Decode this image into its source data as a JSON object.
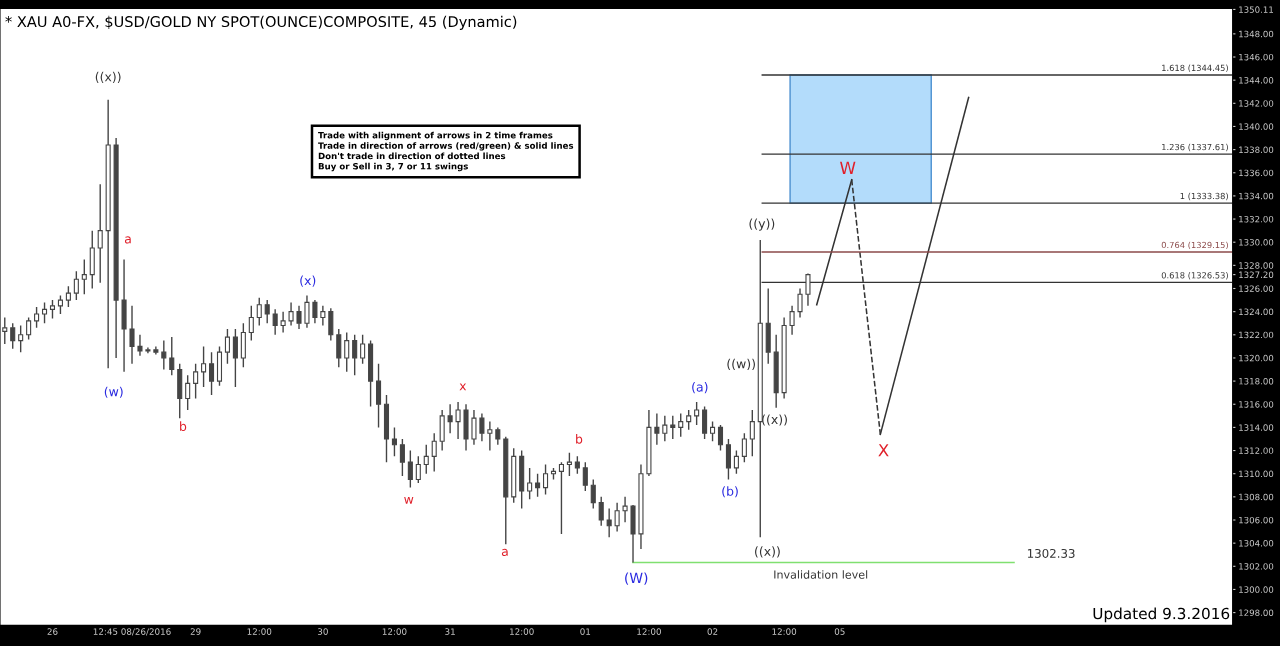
{
  "chart_data": {
    "type": "candlestick",
    "title": "* XAU A0-FX, $USD/GOLD NY SPOT(OUNCE)COMPOSITE, 45 (Dynamic)",
    "color": "#444444",
    "categories": [
      null,
      null,
      null,
      null,
      null,
      null,
      "26",
      null,
      null,
      null,
      null,
      null,
      null,
      null,
      null,
      null,
      "12:45 08/26/2016",
      null,
      null,
      null,
      null,
      null,
      null,
      null,
      "29",
      null,
      null,
      null,
      null,
      null,
      null,
      null,
      "12:00",
      null,
      null,
      null,
      null,
      null,
      null,
      null,
      "30",
      null,
      null,
      null,
      null,
      null,
      null,
      null,
      null,
      "12:00",
      null,
      null,
      null,
      null,
      null,
      null,
      "31",
      null,
      null,
      null,
      null,
      null,
      null,
      null,
      null,
      "12:00",
      null,
      null,
      null,
      null,
      null,
      null,
      null,
      "01",
      null,
      null,
      null,
      null,
      null,
      null,
      null,
      "12:00",
      null,
      null,
      null,
      null,
      null,
      null,
      null,
      "02",
      null,
      null,
      null,
      null,
      null,
      null,
      null,
      null,
      "12:00",
      null,
      null,
      null,
      null,
      null,
      null,
      "05",
      null,
      null,
      null,
      null,
      null,
      null,
      null,
      null,
      null,
      null,
      null,
      null,
      null,
      null,
      null,
      null,
      null,
      null,
      null,
      null,
      null,
      null,
      null,
      null,
      null,
      null,
      null,
      null,
      null,
      null,
      null,
      null,
      null,
      null,
      null,
      null,
      null,
      null,
      null,
      null,
      null,
      null,
      null,
      null,
      null,
      null,
      null,
      null,
      null
    ],
    "ohlc": [
      [
        1322.3,
        1323.5,
        1321.2,
        1322.6
      ],
      [
        1322.6,
        1323.0,
        1320.8,
        1321.5
      ],
      [
        1321.5,
        1322.8,
        1320.5,
        1322.0
      ],
      [
        1322.0,
        1323.5,
        1321.6,
        1323.2
      ],
      [
        1323.2,
        1324.4,
        1322.6,
        1323.8
      ],
      [
        1323.8,
        1324.8,
        1323.0,
        1324.2
      ],
      [
        1324.2,
        1325.0,
        1323.4,
        1324.5
      ],
      [
        1324.5,
        1325.4,
        1323.8,
        1325.0
      ],
      [
        1325.0,
        1326.2,
        1324.4,
        1325.6
      ],
      [
        1325.6,
        1327.5,
        1325.0,
        1326.8
      ],
      [
        1326.8,
        1328.5,
        1325.5,
        1327.2
      ],
      [
        1327.2,
        1331.0,
        1326.0,
        1329.5
      ],
      [
        1329.5,
        1335.0,
        1326.5,
        1331.0
      ],
      [
        1331.0,
        1342.3,
        1319.1,
        1338.4
      ],
      [
        1338.4,
        1339.0,
        1320.0,
        1325.0
      ],
      [
        1325.0,
        1328.5,
        1318.8,
        1322.5
      ],
      [
        1322.5,
        1324.5,
        1319.5,
        1321.0
      ],
      [
        1321.0,
        1322.0,
        1320.2,
        1320.6
      ],
      [
        1320.6,
        1320.9,
        1320.4,
        1320.7
      ],
      [
        1320.7,
        1321.0,
        1320.3,
        1320.5
      ],
      [
        1320.5,
        1321.5,
        1319.0,
        1320.0
      ],
      [
        1320.0,
        1321.8,
        1318.5,
        1319.0
      ],
      [
        1319.0,
        1319.5,
        1314.8,
        1316.5
      ],
      [
        1316.5,
        1318.5,
        1315.5,
        1317.8
      ],
      [
        1317.8,
        1319.5,
        1316.5,
        1318.8
      ],
      [
        1318.8,
        1321.0,
        1317.5,
        1319.5
      ],
      [
        1319.5,
        1320.5,
        1316.8,
        1318.0
      ],
      [
        1318.0,
        1321.0,
        1317.6,
        1320.5
      ],
      [
        1320.5,
        1322.5,
        1319.5,
        1321.8
      ],
      [
        1321.8,
        1322.5,
        1317.5,
        1320.0
      ],
      [
        1320.0,
        1323.0,
        1319.2,
        1322.2
      ],
      [
        1322.2,
        1324.5,
        1321.5,
        1323.5
      ],
      [
        1323.5,
        1325.2,
        1322.8,
        1324.6
      ],
      [
        1324.6,
        1325.0,
        1323.0,
        1323.8
      ],
      [
        1323.8,
        1324.2,
        1322.0,
        1322.8
      ],
      [
        1322.8,
        1324.0,
        1322.2,
        1323.2
      ],
      [
        1323.2,
        1324.8,
        1322.8,
        1324.0
      ],
      [
        1324.0,
        1324.5,
        1322.5,
        1323.0
      ],
      [
        1323.0,
        1325.4,
        1322.6,
        1324.8
      ],
      [
        1324.8,
        1325.0,
        1323.0,
        1323.5
      ],
      [
        1323.5,
        1324.5,
        1322.8,
        1324.0
      ],
      [
        1324.0,
        1324.3,
        1321.5,
        1322.0
      ],
      [
        1322.0,
        1322.5,
        1319.2,
        1320.0
      ],
      [
        1320.0,
        1322.2,
        1318.8,
        1321.5
      ],
      [
        1321.5,
        1322.0,
        1318.5,
        1320.0
      ],
      [
        1320.0,
        1322.0,
        1319.5,
        1321.2
      ],
      [
        1321.2,
        1321.5,
        1315.8,
        1318.0
      ],
      [
        1318.0,
        1319.5,
        1314.0,
        1316.0
      ],
      [
        1316.0,
        1316.8,
        1311.0,
        1313.0
      ],
      [
        1313.0,
        1314.0,
        1311.5,
        1312.5
      ],
      [
        1312.5,
        1313.0,
        1309.8,
        1311.0
      ],
      [
        1311.0,
        1312.0,
        1308.8,
        1309.5
      ],
      [
        1309.5,
        1311.5,
        1309.2,
        1310.8
      ],
      [
        1310.8,
        1312.5,
        1310.0,
        1311.5
      ],
      [
        1311.5,
        1313.5,
        1310.2,
        1312.8
      ],
      [
        1312.8,
        1315.5,
        1312.0,
        1315.0
      ],
      [
        1315.0,
        1316.0,
        1313.5,
        1314.5
      ],
      [
        1314.5,
        1316.2,
        1313.0,
        1315.5
      ],
      [
        1315.5,
        1316.0,
        1312.0,
        1313.0
      ],
      [
        1313.0,
        1315.5,
        1312.5,
        1314.8
      ],
      [
        1314.8,
        1315.2,
        1312.8,
        1313.5
      ],
      [
        1313.5,
        1314.5,
        1312.0,
        1313.8
      ],
      [
        1313.8,
        1314.0,
        1312.5,
        1313.0
      ],
      [
        1313.0,
        1313.2,
        1303.9,
        1308.0
      ],
      [
        1308.0,
        1312.2,
        1307.5,
        1311.5
      ],
      [
        1311.5,
        1312.0,
        1307.0,
        1308.5
      ],
      [
        1308.5,
        1310.5,
        1307.8,
        1309.2
      ],
      [
        1309.2,
        1310.0,
        1308.0,
        1308.8
      ],
      [
        1308.8,
        1310.8,
        1308.2,
        1310.0
      ],
      [
        1310.0,
        1310.5,
        1309.5,
        1310.2
      ],
      [
        1310.2,
        1311.0,
        1304.8,
        1310.8
      ],
      [
        1310.8,
        1311.8,
        1309.8,
        1311.0
      ],
      [
        1311.0,
        1311.5,
        1310.0,
        1310.5
      ],
      [
        1310.5,
        1311.0,
        1308.5,
        1309.0
      ],
      [
        1309.0,
        1309.5,
        1307.0,
        1307.5
      ],
      [
        1307.5,
        1308.0,
        1305.5,
        1306.0
      ],
      [
        1306.0,
        1307.0,
        1304.5,
        1305.5
      ],
      [
        1305.5,
        1307.5,
        1305.0,
        1306.8
      ],
      [
        1306.8,
        1308.0,
        1305.8,
        1307.2
      ],
      [
        1307.2,
        1307.3,
        1302.33,
        1304.8
      ],
      [
        1304.8,
        1310.8,
        1303.5,
        1310.0
      ],
      [
        1310.0,
        1315.5,
        1309.8,
        1314.0
      ],
      [
        1314.0,
        1315.2,
        1312.5,
        1313.5
      ],
      [
        1313.5,
        1315.0,
        1312.8,
        1314.2
      ],
      [
        1314.2,
        1315.0,
        1313.0,
        1314.0
      ],
      [
        1314.0,
        1315.2,
        1313.2,
        1314.5
      ],
      [
        1314.5,
        1315.5,
        1313.8,
        1315.0
      ],
      [
        1315.0,
        1316.2,
        1314.2,
        1315.5
      ],
      [
        1315.5,
        1315.8,
        1313.0,
        1313.5
      ],
      [
        1313.5,
        1314.5,
        1312.8,
        1314.0
      ],
      [
        1314.0,
        1314.2,
        1312.0,
        1312.5
      ],
      [
        1312.5,
        1313.0,
        1309.5,
        1310.5
      ],
      [
        1310.5,
        1312.0,
        1310.0,
        1311.5
      ],
      [
        1311.5,
        1313.5,
        1311.0,
        1313.0
      ],
      [
        1313.0,
        1315.5,
        1311.5,
        1314.5
      ],
      [
        1314.5,
        1330.2,
        1304.5,
        1323.0
      ],
      [
        1323.0,
        1326.0,
        1319.5,
        1320.5
      ],
      [
        1320.5,
        1322.0,
        1315.7,
        1317.0
      ],
      [
        1317.0,
        1323.5,
        1316.5,
        1322.8
      ],
      [
        1322.8,
        1324.5,
        1322.0,
        1324.0
      ],
      [
        1324.0,
        1326.0,
        1323.5,
        1325.5
      ],
      [
        1325.5,
        1327.3,
        1324.5,
        1327.2
      ],
      null,
      null,
      null,
      null,
      null,
      null,
      null,
      null,
      null,
      null,
      null,
      null,
      null,
      null,
      null,
      null,
      null,
      null,
      null,
      null,
      null,
      null,
      null,
      null,
      null,
      null,
      null,
      null,
      null,
      null,
      null,
      null,
      null,
      null,
      null,
      null,
      null,
      null,
      null,
      null,
      null,
      null,
      null,
      null,
      null,
      null,
      null,
      null,
      null,
      null,
      null,
      null,
      null
    ],
    "ylim": [
      1296.9,
      1350.2
    ],
    "yticks": [
      {
        "value": 1298,
        "label": "1298.00"
      },
      {
        "value": 1300,
        "label": "1300.00"
      },
      {
        "value": 1302,
        "label": "1302.00"
      },
      {
        "value": 1304,
        "label": "1304.00"
      },
      {
        "value": 1306,
        "label": "1306.00"
      },
      {
        "value": 1308,
        "label": "1308.00"
      },
      {
        "value": 1310,
        "label": "1310.00"
      },
      {
        "value": 1312,
        "label": "1312.00"
      },
      {
        "value": 1314,
        "label": "1314.00"
      },
      {
        "value": 1316,
        "label": "1316.00"
      },
      {
        "value": 1318,
        "label": "1318.00"
      },
      {
        "value": 1320,
        "label": "1320.00"
      },
      {
        "value": 1322,
        "label": "1322.00"
      },
      {
        "value": 1324,
        "label": "1324.00"
      },
      {
        "value": 1326,
        "label": "1326.00"
      },
      {
        "value": 1327.2,
        "label": "1327.20"
      },
      {
        "value": 1328,
        "label": "1328.00"
      },
      {
        "value": 1330,
        "label": "1330.00"
      },
      {
        "value": 1332,
        "label": "1332.00"
      },
      {
        "value": 1334,
        "label": "1334.00"
      },
      {
        "value": 1336,
        "label": "1336.00"
      },
      {
        "value": 1338,
        "label": "1338.00"
      },
      {
        "value": 1340,
        "label": "1340.00"
      },
      {
        "value": 1342,
        "label": "1342.00"
      },
      {
        "value": 1344,
        "label": "1344.00"
      },
      {
        "value": 1346,
        "label": "1346.00"
      },
      {
        "value": 1348,
        "label": "1348.00"
      },
      {
        "value": 1350.11,
        "label": "1350.11"
      }
    ],
    "ref_lines": [
      {
        "axis": "y",
        "value": 1344.45,
        "label": "1.618 (1344.45)",
        "color": "#333333"
      },
      {
        "axis": "y",
        "value": 1337.61,
        "label": "1.236 (1337.61)",
        "color": "#333333"
      },
      {
        "axis": "y",
        "value": 1333.38,
        "label": "1 (1333.38)",
        "color": "#333333"
      },
      {
        "axis": "y",
        "value": 1329.15,
        "label": "0.764 (1329.15)",
        "color": "#8b4a4a"
      },
      {
        "axis": "y",
        "value": 1326.53,
        "label": "0.618 (1326.53)",
        "color": "#333333"
      },
      {
        "axis": "y",
        "value": 1302.33,
        "label": "1302.33",
        "color": "#80e070"
      }
    ],
    "bands": [
      {
        "axis": "y",
        "from": 1333.38,
        "to": 1344.45,
        "color": "#b3dcfb"
      }
    ],
    "annotations": [
      "((x))",
      "a",
      "(w)",
      "b",
      "(x)",
      "w",
      "x",
      "a",
      "b",
      {
        "text": "(W)",
        "y": 1302.33
      },
      "(a)",
      "(b)",
      "((x))",
      {
        "text": "((y))",
        "y": 1330.2
      },
      "((x))",
      "((w))",
      "W",
      "X",
      "Invalidation level",
      "Trade with alignment of arrows in 2 time frames\nTrade in direction of arrows (red/green) & solid lines\nDon't trade in direction of dotted lines\nBuy or Sell in 3, 7 or 11 swings",
      "Updated 9.3.2016"
    ]
  }
}
